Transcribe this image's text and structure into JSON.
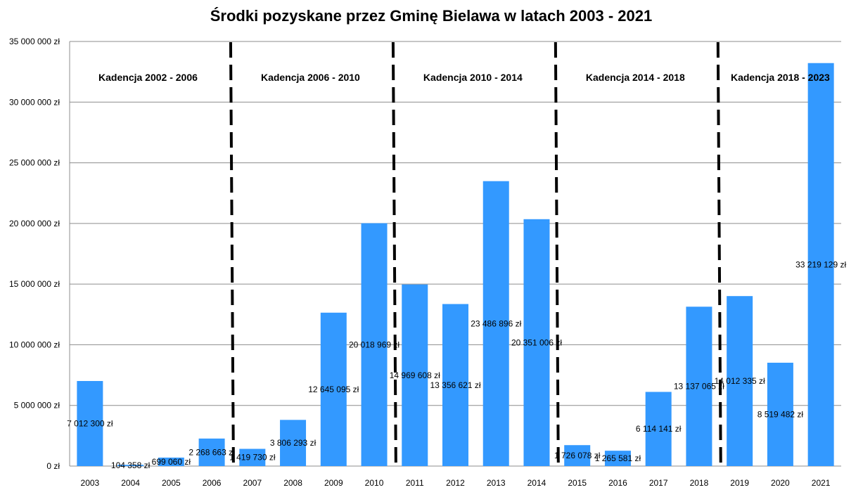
{
  "chart_data": {
    "type": "bar",
    "title": "Środki pozyskane przez Gminę Bielawa w latach 2003 - 2021",
    "xlabel": "",
    "ylabel": "",
    "ylim": [
      0,
      35000000
    ],
    "grid": true,
    "legend": "none",
    "bar_color": "#3399ff",
    "categories": [
      "2003",
      "2004",
      "2005",
      "2006",
      "2007",
      "2008",
      "2009",
      "2010",
      "2011",
      "2012",
      "2013",
      "2014",
      "2015",
      "2016",
      "2017",
      "2018",
      "2019",
      "2020",
      "2021"
    ],
    "values": [
      7012300,
      104358,
      699060,
      2268663,
      1419730,
      3806293,
      12645095,
      20018969,
      14969608,
      13356621,
      23486896,
      20351006,
      1726078,
      1265581,
      6114141,
      13137065,
      14012335,
      8519482,
      33219129
    ],
    "data_labels": [
      "7 012 300 zł",
      "104 358 zł",
      "699 060 zł",
      "2 268 663 zł",
      "1 419 730 zł",
      "3 806 293 zł",
      "12 645 095 zł",
      "20 018 969 zł",
      "14 969 608 zł",
      "13 356 621 zł",
      "23 486 896 zł",
      "20 351 006 zł",
      "1 726 078 zł",
      "1 265 581 zł",
      "6 114 141 zł",
      "13 137 065 zł",
      "14 012 335 zł",
      "8 519 482 zł",
      "33 219 129 zł"
    ],
    "y_ticks": [
      {
        "value": 0,
        "label": "0 zł"
      },
      {
        "value": 5000000,
        "label": "5 000 000 zł"
      },
      {
        "value": 10000000,
        "label": "10 000 000 zł"
      },
      {
        "value": 15000000,
        "label": "15 000 000 zł"
      },
      {
        "value": 20000000,
        "label": "20 000 000 zł"
      },
      {
        "value": 25000000,
        "label": "25 000 000 zł"
      },
      {
        "value": 30000000,
        "label": "30 000 000 zł"
      },
      {
        "value": 35000000,
        "label": "35 000 000 zł"
      }
    ],
    "terms": [
      {
        "label": "Kadencja 2002 - 2006",
        "from": "2003",
        "to": "2006"
      },
      {
        "label": "Kadencja 2006 - 2010",
        "from": "2007",
        "to": "2010"
      },
      {
        "label": "Kadencja 2010 - 2014",
        "from": "2011",
        "to": "2014"
      },
      {
        "label": "Kadencja 2014 - 2018",
        "from": "2015",
        "to": "2018"
      },
      {
        "label": "Kadencja 2018 - 2023",
        "from": "2019",
        "to": "2021"
      }
    ]
  }
}
